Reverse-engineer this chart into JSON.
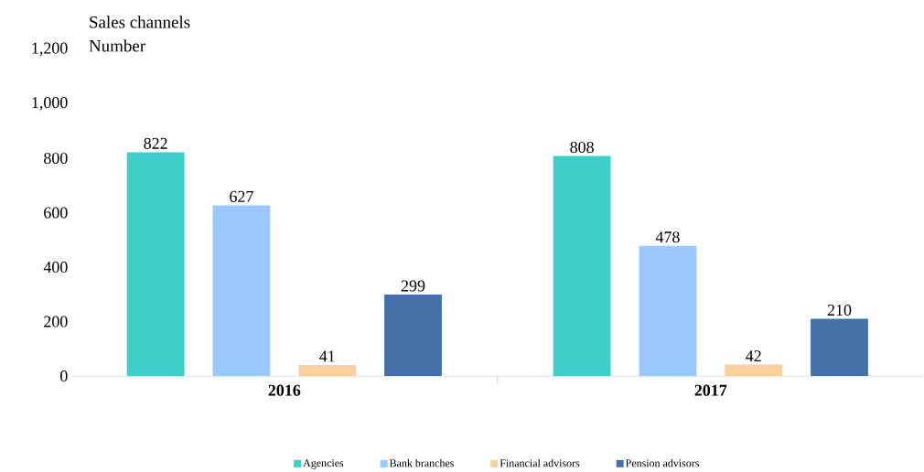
{
  "chart_data": {
    "type": "bar",
    "title": "Sales channels",
    "subtitle": "Number",
    "categories": [
      "2016",
      "2017"
    ],
    "series": [
      {
        "name": "Agencies",
        "color": "#3ecfca",
        "values": [
          822,
          808
        ]
      },
      {
        "name": "Bank branches",
        "color": "#99c9ff",
        "values": [
          627,
          478
        ]
      },
      {
        "name": "Financial advisors",
        "color": "#fbd0a0",
        "values": [
          41,
          42
        ]
      },
      {
        "name": "Pension advisors",
        "color": "#4472a8",
        "values": [
          299,
          210
        ]
      }
    ],
    "ylim": [
      0,
      1200
    ],
    "yticks": [
      0,
      200,
      400,
      600,
      800,
      {
        "value": 1000,
        "label": "1,000"
      },
      {
        "value": 1200,
        "label": "1,200"
      }
    ],
    "data_labels": true,
    "legend": "bottom"
  }
}
